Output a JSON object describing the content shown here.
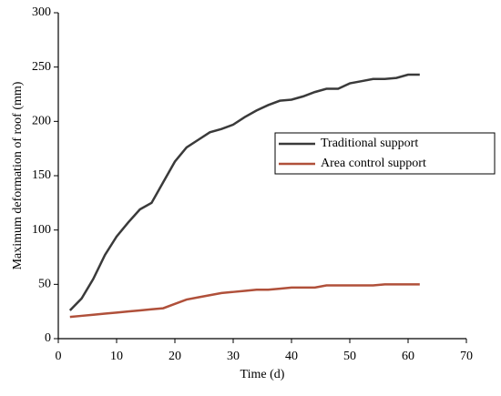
{
  "chart_data": {
    "type": "line",
    "x_label": "Time (d)",
    "y_label": "Maximum deformation of roof (mm)",
    "x": [
      2,
      4,
      6,
      8,
      10,
      12,
      14,
      16,
      18,
      20,
      22,
      24,
      26,
      28,
      30,
      32,
      34,
      36,
      38,
      40,
      42,
      44,
      46,
      48,
      50,
      52,
      54,
      56,
      58,
      60,
      62
    ],
    "series": [
      {
        "name": "Traditional support",
        "color": "#3a3a3a",
        "values": [
          26,
          37,
          55,
          77,
          94,
          107,
          119,
          125,
          144,
          163,
          176,
          183,
          190,
          193,
          197,
          204,
          210,
          215,
          219,
          220,
          223,
          227,
          230,
          230,
          235,
          237,
          239,
          239,
          240,
          243,
          243
        ]
      },
      {
        "name": "Area control support",
        "color": "#b0503a",
        "values": [
          20,
          21,
          22,
          23,
          24,
          25,
          26,
          27,
          28,
          32,
          36,
          38,
          40,
          42,
          43,
          44,
          45,
          45,
          46,
          47,
          47,
          47,
          49,
          49,
          49,
          49,
          49,
          50,
          50,
          50,
          50
        ]
      }
    ],
    "xlim": [
      0,
      70
    ],
    "xticks": [
      0,
      10,
      20,
      30,
      40,
      50,
      60,
      70
    ],
    "ylim": [
      0,
      300
    ],
    "yticks": [
      0,
      50,
      100,
      150,
      200,
      250,
      300
    ],
    "legend": "center-right"
  }
}
